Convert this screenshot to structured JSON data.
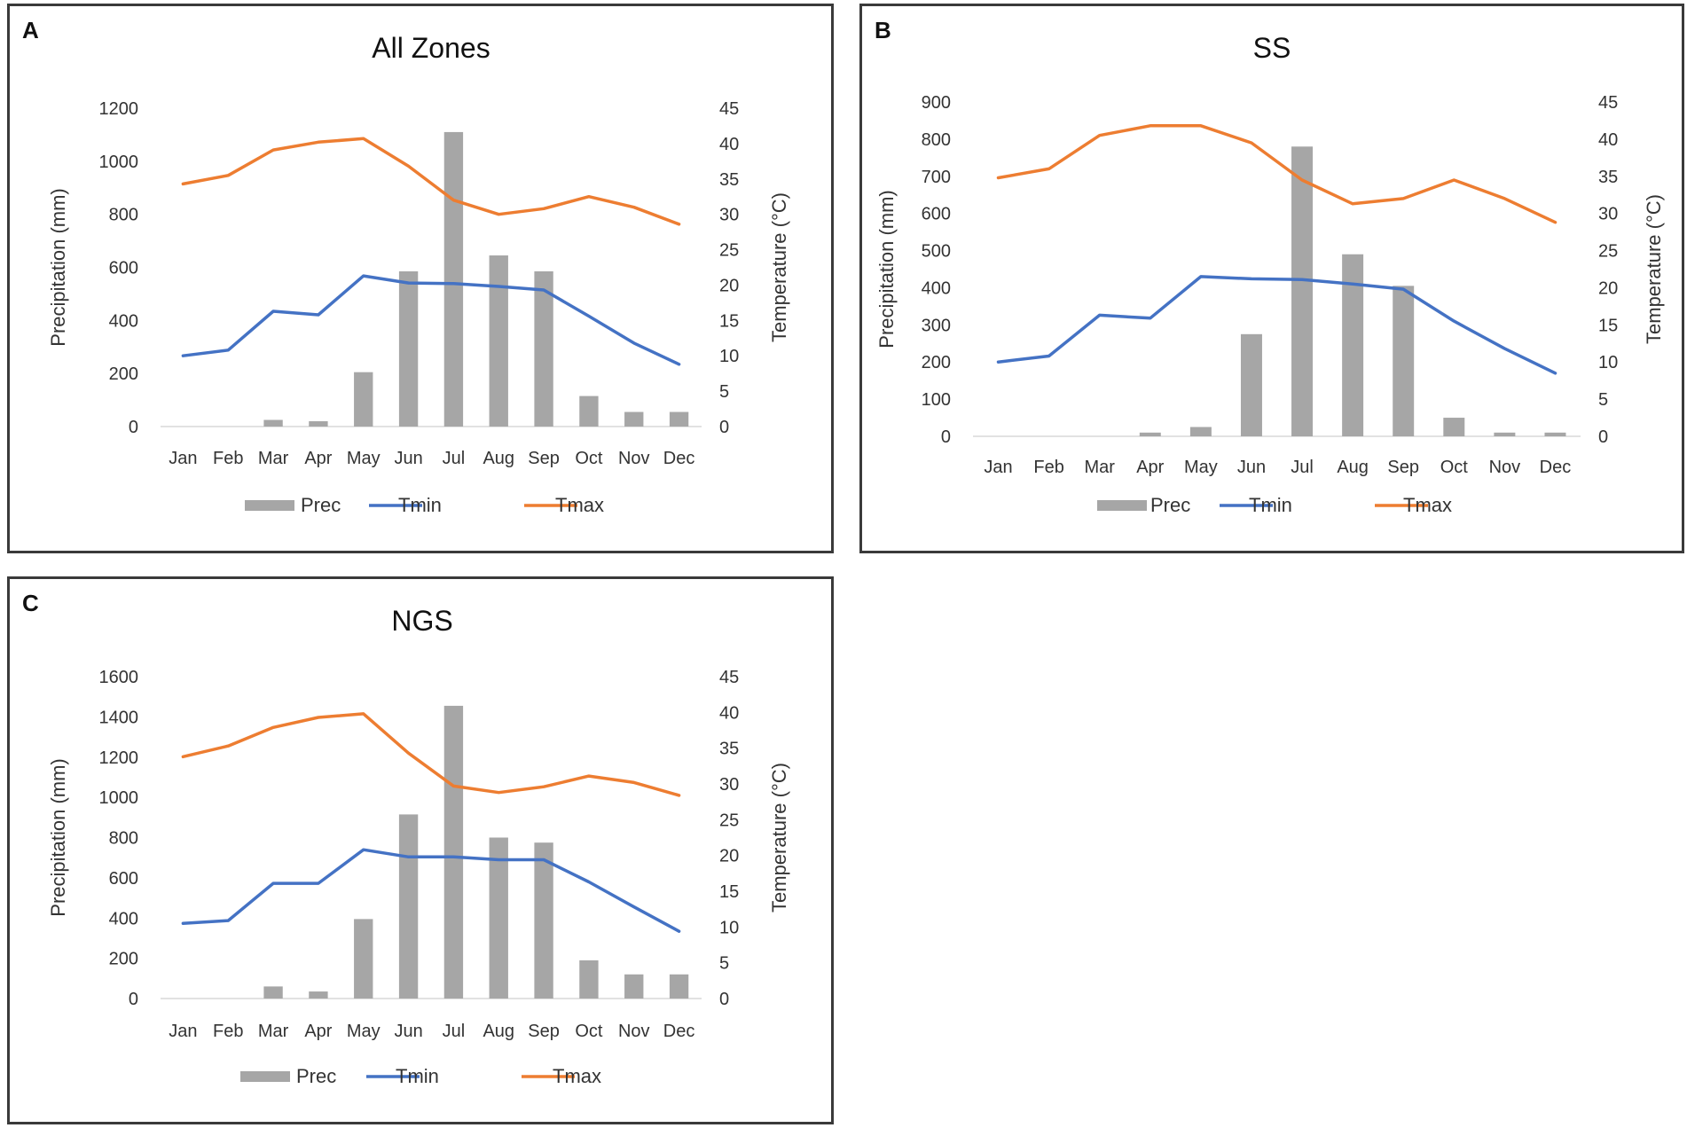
{
  "figure": {
    "panels": [
      {
        "letter": "A"
      },
      {
        "letter": "B"
      },
      {
        "letter": "C"
      }
    ]
  },
  "chart_data": [
    {
      "type": "bar+line",
      "panel": "A",
      "title": "All Zones",
      "categories": [
        "Jan",
        "Feb",
        "Mar",
        "Apr",
        "May",
        "Jun",
        "Jul",
        "Aug",
        "Sep",
        "Oct",
        "Nov",
        "Dec"
      ],
      "xlabel": "",
      "ylabel": "Precipitation (mm)",
      "y2label": "Temperature (°C)",
      "ylim": [
        0,
        1200
      ],
      "yticks": [
        0,
        200,
        400,
        600,
        800,
        1000,
        1200
      ],
      "y2lim": [
        0,
        45
      ],
      "y2ticks": [
        0,
        5,
        10,
        15,
        20,
        25,
        30,
        35,
        40,
        45
      ],
      "series": [
        {
          "name": "Prec",
          "axis": "left",
          "kind": "bar",
          "color": "#a6a6a6",
          "values": [
            0,
            0,
            25,
            20,
            205,
            585,
            1110,
            645,
            585,
            115,
            55,
            55
          ]
        },
        {
          "name": "Tmin",
          "axis": "right",
          "kind": "line",
          "color": "#4472c4",
          "values": [
            10.0,
            10.8,
            16.3,
            15.8,
            21.3,
            20.3,
            20.2,
            19.8,
            19.3,
            15.6,
            11.8,
            8.8
          ]
        },
        {
          "name": "Tmax",
          "axis": "right",
          "kind": "line",
          "color": "#ed7d31",
          "values": [
            34.3,
            35.5,
            39.1,
            40.2,
            40.7,
            36.8,
            32.0,
            30.0,
            30.8,
            32.5,
            31.0,
            28.6
          ]
        }
      ],
      "legend": "bottom",
      "grid": false
    },
    {
      "type": "bar+line",
      "panel": "B",
      "title": "SS",
      "categories": [
        "Jan",
        "Feb",
        "Mar",
        "Apr",
        "May",
        "Jun",
        "Jul",
        "Aug",
        "Sep",
        "Oct",
        "Nov",
        "Dec"
      ],
      "xlabel": "",
      "ylabel": "Precipitation (mm)",
      "y2label": "Temperature (°C)",
      "ylim": [
        0,
        900
      ],
      "yticks": [
        0,
        100,
        200,
        300,
        400,
        500,
        600,
        700,
        800,
        900
      ],
      "y2lim": [
        0,
        45
      ],
      "y2ticks": [
        0,
        5,
        10,
        15,
        20,
        25,
        30,
        35,
        40,
        45
      ],
      "series": [
        {
          "name": "Prec",
          "axis": "left",
          "kind": "bar",
          "color": "#a6a6a6",
          "values": [
            0,
            0,
            0,
            10,
            25,
            275,
            780,
            490,
            405,
            50,
            10,
            10
          ]
        },
        {
          "name": "Tmin",
          "axis": "right",
          "kind": "line",
          "color": "#4472c4",
          "values": [
            10.0,
            10.8,
            16.3,
            15.9,
            21.5,
            21.2,
            21.1,
            20.5,
            19.8,
            15.5,
            11.8,
            8.5
          ]
        },
        {
          "name": "Tmax",
          "axis": "right",
          "kind": "line",
          "color": "#ed7d31",
          "values": [
            34.8,
            36.0,
            40.5,
            41.8,
            41.8,
            39.5,
            34.5,
            31.3,
            32.0,
            34.5,
            32.0,
            28.8
          ]
        }
      ],
      "legend": "bottom",
      "grid": false
    },
    {
      "type": "bar+line",
      "panel": "C",
      "title": "NGS",
      "categories": [
        "Jan",
        "Feb",
        "Mar",
        "Apr",
        "May",
        "Jun",
        "Jul",
        "Aug",
        "Sep",
        "Oct",
        "Nov",
        "Dec"
      ],
      "xlabel": "",
      "ylabel": "Precipitation (mm)",
      "y2label": "Temperature (°C)",
      "ylim": [
        0,
        1600
      ],
      "yticks": [
        0,
        200,
        400,
        600,
        800,
        1000,
        1200,
        1400,
        1600
      ],
      "y2lim": [
        0,
        45
      ],
      "y2ticks": [
        0,
        5,
        10,
        15,
        20,
        25,
        30,
        35,
        40,
        45
      ],
      "series": [
        {
          "name": "Prec",
          "axis": "left",
          "kind": "bar",
          "color": "#a6a6a6",
          "values": [
            0,
            0,
            60,
            35,
            395,
            915,
            1455,
            800,
            775,
            190,
            120,
            120
          ]
        },
        {
          "name": "Tmin",
          "axis": "right",
          "kind": "line",
          "color": "#4472c4",
          "values": [
            10.5,
            10.9,
            16.1,
            16.1,
            20.8,
            19.8,
            19.8,
            19.4,
            19.4,
            16.3,
            12.8,
            9.4
          ]
        },
        {
          "name": "Tmax",
          "axis": "right",
          "kind": "line",
          "color": "#ed7d31",
          "values": [
            33.8,
            35.3,
            37.9,
            39.3,
            39.8,
            34.3,
            29.7,
            28.8,
            29.6,
            31.1,
            30.2,
            28.4
          ]
        }
      ],
      "legend": "bottom",
      "grid": false
    }
  ]
}
